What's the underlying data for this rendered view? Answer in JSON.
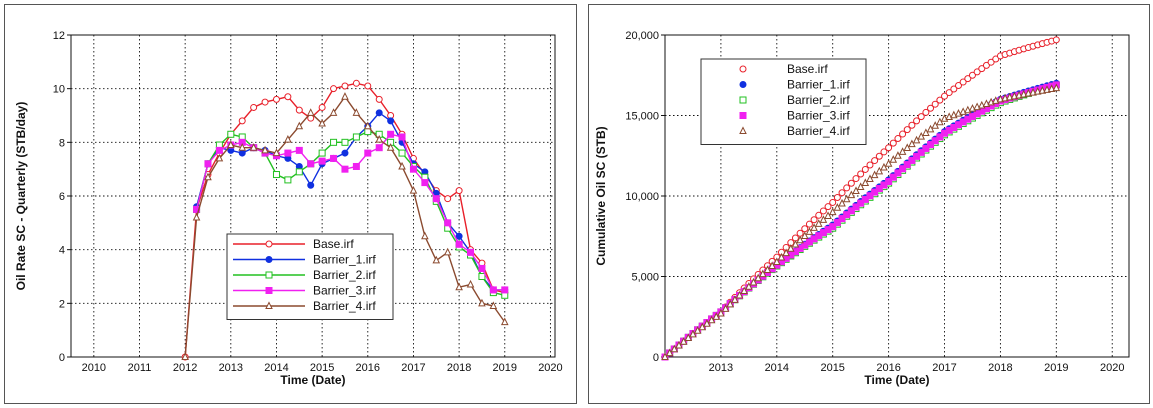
{
  "chart_data": [
    {
      "type": "line",
      "title": "",
      "xlabel": "Time (Date)",
      "ylabel": "Oil Rate SC - Quarterly (STB/day)",
      "xlim": [
        2009.5,
        2020.1
      ],
      "ylim": [
        0,
        12
      ],
      "xticks": [
        "2010",
        "2011",
        "2012",
        "2013",
        "2014",
        "2015",
        "2016",
        "2017",
        "2018",
        "2019",
        "2020"
      ],
      "yticks": [
        "0",
        "2",
        "4",
        "6",
        "8",
        "10",
        "12"
      ],
      "grid": true,
      "legend_position": "lower-center",
      "series": [
        {
          "name": "Base.irf",
          "color": "#e8202a",
          "marker": "circle-open",
          "x": [
            2012.0,
            2012.25,
            2012.5,
            2012.75,
            2013.0,
            2013.25,
            2013.5,
            2013.75,
            2014.0,
            2014.25,
            2014.5,
            2014.75,
            2015.0,
            2015.25,
            2015.5,
            2015.75,
            2016.0,
            2016.25,
            2016.5,
            2016.75,
            2017.0,
            2017.25,
            2017.5,
            2017.75,
            2018.0,
            2018.25,
            2018.5,
            2018.75,
            2019.0
          ],
          "y": [
            0,
            5.5,
            6.8,
            7.6,
            8.3,
            8.8,
            9.3,
            9.5,
            9.6,
            9.7,
            9.2,
            8.9,
            9.3,
            10.0,
            10.1,
            10.2,
            10.1,
            9.6,
            9.0,
            8.3,
            7.4,
            6.8,
            6.2,
            5.9,
            6.2,
            4.0,
            3.5,
            2.5,
            2.4
          ]
        },
        {
          "name": "Barrier_1.irf",
          "color": "#1030e0",
          "marker": "circle-filled",
          "x": [
            2012.25,
            2012.5,
            2012.75,
            2013.0,
            2013.25,
            2013.5,
            2013.75,
            2014.0,
            2014.25,
            2014.5,
            2014.75,
            2015.0,
            2015.25,
            2015.5,
            2015.75,
            2016.0,
            2016.25,
            2016.5,
            2016.75,
            2017.0,
            2017.25,
            2017.5,
            2017.75,
            2018.0,
            2018.25,
            2018.5,
            2018.75,
            2019.0
          ],
          "y": [
            5.6,
            7.2,
            7.8,
            7.7,
            7.6,
            7.8,
            7.7,
            7.5,
            7.4,
            7.1,
            6.4,
            7.2,
            7.4,
            7.6,
            8.2,
            8.6,
            9.1,
            8.8,
            8.0,
            7.2,
            6.9,
            6.1,
            5.0,
            4.5,
            3.9,
            3.0,
            2.5,
            2.5
          ]
        },
        {
          "name": "Barrier_2.irf",
          "color": "#22c020",
          "marker": "square-open",
          "x": [
            2012.25,
            2012.5,
            2012.75,
            2013.0,
            2013.25,
            2013.5,
            2013.75,
            2014.0,
            2014.25,
            2014.5,
            2014.75,
            2015.0,
            2015.25,
            2015.5,
            2015.75,
            2016.0,
            2016.25,
            2016.5,
            2016.75,
            2017.0,
            2017.25,
            2017.5,
            2017.75,
            2018.0,
            2018.25,
            2018.5,
            2018.75,
            2019.0
          ],
          "y": [
            5.5,
            7.2,
            7.9,
            8.3,
            8.2,
            7.8,
            7.6,
            6.8,
            6.6,
            6.9,
            7.2,
            7.6,
            8.0,
            8.0,
            8.2,
            8.4,
            8.3,
            8.0,
            7.6,
            7.1,
            6.7,
            5.8,
            4.8,
            4.1,
            3.8,
            3.0,
            2.4,
            2.3
          ]
        },
        {
          "name": "Barrier_3.irf",
          "color": "#f020f0",
          "marker": "square-filled",
          "x": [
            2012.25,
            2012.5,
            2012.75,
            2013.0,
            2013.25,
            2013.5,
            2013.75,
            2014.0,
            2014.25,
            2014.5,
            2014.75,
            2015.0,
            2015.25,
            2015.5,
            2015.75,
            2016.0,
            2016.25,
            2016.5,
            2016.75,
            2017.0,
            2017.25,
            2017.5,
            2017.75,
            2018.0,
            2018.25,
            2018.5,
            2018.75,
            2019.0
          ],
          "y": [
            5.5,
            7.2,
            7.7,
            7.9,
            8.0,
            7.8,
            7.6,
            7.5,
            7.6,
            7.7,
            7.2,
            7.3,
            7.4,
            7.0,
            7.1,
            7.6,
            7.8,
            8.3,
            8.2,
            7.0,
            6.5,
            5.9,
            5.0,
            4.2,
            3.9,
            3.3,
            2.5,
            2.5
          ]
        },
        {
          "name": "Barrier_4.irf",
          "color": "#8b4a2f",
          "marker": "triangle-open",
          "x": [
            2012.0,
            2012.25,
            2012.5,
            2012.75,
            2013.0,
            2013.25,
            2013.5,
            2013.75,
            2014.0,
            2014.25,
            2014.5,
            2014.75,
            2015.0,
            2015.25,
            2015.5,
            2015.75,
            2016.0,
            2016.25,
            2016.5,
            2016.75,
            2017.0,
            2017.25,
            2017.5,
            2017.75,
            2018.0,
            2018.25,
            2018.5,
            2018.75,
            2019.0
          ],
          "y": [
            0,
            5.2,
            6.7,
            7.4,
            7.9,
            7.8,
            7.8,
            7.7,
            7.6,
            8.1,
            8.6,
            9.1,
            8.7,
            9.1,
            9.7,
            9.1,
            8.6,
            8.1,
            7.8,
            7.1,
            6.2,
            4.5,
            3.6,
            3.9,
            2.6,
            2.7,
            2.0,
            1.9,
            1.3
          ]
        }
      ]
    },
    {
      "type": "scatter",
      "title": "",
      "xlabel": "Time (Date)",
      "ylabel": "Cumulative Oil SC (STB)",
      "xlim": [
        2012.0,
        2020.3
      ],
      "ylim": [
        0,
        20000
      ],
      "xticks": [
        "2013",
        "2014",
        "2015",
        "2016",
        "2017",
        "2018",
        "2019",
        "2020"
      ],
      "yticks": [
        "0",
        "5,000",
        "10,000",
        "15,000",
        "20,000"
      ],
      "grid": true,
      "legend_position": "top-left",
      "series": [
        {
          "name": "Base.irf",
          "color": "#e8202a",
          "marker": "circle-open",
          "x": [
            2012.0,
            2013.0,
            2014.0,
            2015.0,
            2016.0,
            2017.0,
            2018.0,
            2019.0
          ],
          "y": [
            0,
            2800,
            6200,
            9600,
            13000,
            16200,
            18700,
            19700
          ]
        },
        {
          "name": "Barrier_1.irf",
          "color": "#1030e0",
          "marker": "circle-filled",
          "x": [
            2012.0,
            2013.0,
            2014.0,
            2015.0,
            2016.0,
            2017.0,
            2018.0,
            2019.0
          ],
          "y": [
            0,
            2800,
            5700,
            8200,
            11000,
            14000,
            16000,
            17000
          ]
        },
        {
          "name": "Barrier_2.irf",
          "color": "#22c020",
          "marker": "square-open",
          "x": [
            2012.0,
            2013.0,
            2014.0,
            2015.0,
            2016.0,
            2017.0,
            2018.0,
            2019.0
          ],
          "y": [
            0,
            2800,
            5650,
            8000,
            10800,
            13800,
            15800,
            16900
          ]
        },
        {
          "name": "Barrier_3.irf",
          "color": "#f020f0",
          "marker": "square-filled",
          "x": [
            2012.0,
            2013.0,
            2014.0,
            2015.0,
            2016.0,
            2017.0,
            2018.0,
            2019.0
          ],
          "y": [
            0,
            2800,
            5700,
            8100,
            10900,
            13900,
            15900,
            16900
          ]
        },
        {
          "name": "Barrier_4.irf",
          "color": "#8b4a2f",
          "marker": "triangle-open",
          "x": [
            2012.0,
            2013.0,
            2014.0,
            2015.0,
            2016.0,
            2017.0,
            2018.0,
            2019.0
          ],
          "y": [
            0,
            2700,
            5900,
            9000,
            12000,
            14800,
            16000,
            16700
          ]
        }
      ]
    }
  ]
}
